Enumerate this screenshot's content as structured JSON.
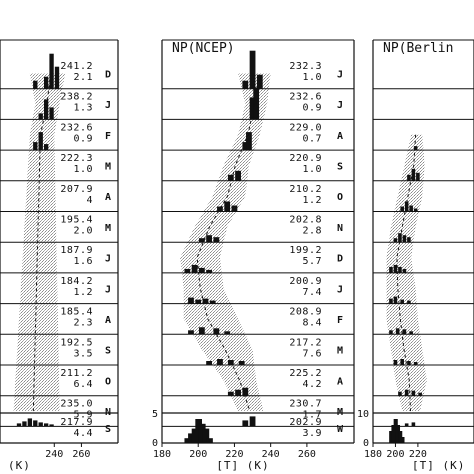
{
  "chart_data": {
    "type": "bar",
    "layout": "three stacked monthly temperature histograms with partial left and right panels",
    "fill_color": "#111111",
    "range_shading": "stippled gray",
    "panels": [
      {
        "title": "",
        "months": [
          {
            "label": "D",
            "mean": "241.2",
            "std": "2.1",
            "bars": [
              [
                226,
                8
              ],
              [
                234,
                12
              ],
              [
                238,
                35
              ],
              [
                242,
                22
              ]
            ]
          },
          {
            "label": "J",
            "mean": "238.2",
            "std": "1.3",
            "bars": [
              [
                230,
                6
              ],
              [
                234,
                20
              ],
              [
                238,
                12
              ]
            ]
          },
          {
            "label": "F",
            "mean": "232.6",
            "std": "0.9",
            "bars": [
              [
                226,
                8
              ],
              [
                230,
                18
              ],
              [
                234,
                6
              ]
            ]
          },
          {
            "label": "M",
            "mean": "222.3",
            "std": "1.0",
            "bars": []
          },
          {
            "label": "A",
            "mean": "207.9",
            "std": "4",
            "bars": []
          },
          {
            "label": "M",
            "mean": "195.4",
            "std": "2.0",
            "bars": []
          },
          {
            "label": "J",
            "mean": "187.9",
            "std": "1.6",
            "bars": []
          },
          {
            "label": "J",
            "mean": "184.2",
            "std": "1.2",
            "bars": []
          },
          {
            "label": "A",
            "mean": "185.4",
            "std": "2.3",
            "bars": []
          },
          {
            "label": "S",
            "mean": "192.5",
            "std": "3.5",
            "bars": []
          },
          {
            "label": "O",
            "mean": "211.2",
            "std": "6.4",
            "bars": []
          },
          {
            "label": "N",
            "mean": "235.0",
            "std": "5.9",
            "bars": [
              [
                214,
                3
              ],
              [
                218,
                5
              ],
              [
                222,
                8
              ],
              [
                226,
                6
              ],
              [
                230,
                4
              ],
              [
                234,
                3
              ],
              [
                238,
                2
              ]
            ]
          }
        ],
        "annual": {
          "label": "S",
          "mean": "217.9",
          "std": "4.4",
          "bars": []
        },
        "x_ticks": [
          "240",
          "260"
        ],
        "x_domain": [
          200,
          270
        ],
        "annual_y_ticks": []
      },
      {
        "title": "NP(NCEP)",
        "months": [
          {
            "label": "J",
            "mean": "232.3",
            "std": "1.0",
            "bars": [
              [
                226,
                8
              ],
              [
                230,
                38
              ],
              [
                234,
                14
              ]
            ]
          },
          {
            "label": "J",
            "mean": "232.6",
            "std": "0.9",
            "bars": [
              [
                230,
                22
              ],
              [
                232,
                32
              ]
            ]
          },
          {
            "label": "A",
            "mean": "229.0",
            "std": "0.7",
            "bars": [
              [
                226,
                8
              ],
              [
                228,
                18
              ]
            ]
          },
          {
            "label": "S",
            "mean": "220.9",
            "std": "1.0",
            "bars": [
              [
                218,
                6
              ],
              [
                222,
                10
              ]
            ]
          },
          {
            "label": "O",
            "mean": "210.2",
            "std": "1.2",
            "bars": [
              [
                212,
                5
              ],
              [
                216,
                10
              ],
              [
                220,
                6
              ]
            ]
          },
          {
            "label": "N",
            "mean": "202.8",
            "std": "2.8",
            "bars": [
              [
                202,
                4
              ],
              [
                206,
                7
              ],
              [
                210,
                5
              ]
            ]
          },
          {
            "label": "D",
            "mean": "199.2",
            "std": "5.7",
            "bars": [
              [
                194,
                4
              ],
              [
                198,
                8
              ],
              [
                202,
                5
              ],
              [
                206,
                3
              ]
            ]
          },
          {
            "label": "J",
            "mean": "200.9",
            "std": "7.4",
            "bars": [
              [
                196,
                6
              ],
              [
                200,
                4
              ],
              [
                204,
                5
              ],
              [
                208,
                3
              ]
            ]
          },
          {
            "label": "F",
            "mean": "208.9",
            "std": "8.4",
            "bars": [
              [
                196,
                4
              ],
              [
                202,
                7
              ],
              [
                210,
                6
              ],
              [
                216,
                3
              ]
            ]
          },
          {
            "label": "M",
            "mean": "217.2",
            "std": "7.6",
            "bars": [
              [
                206,
                4
              ],
              [
                212,
                6
              ],
              [
                218,
                5
              ],
              [
                224,
                4
              ]
            ]
          },
          {
            "label": "A",
            "mean": "225.2",
            "std": "4.2",
            "bars": [
              [
                218,
                4
              ],
              [
                222,
                6
              ],
              [
                226,
                8
              ]
            ]
          },
          {
            "label": "M",
            "mean": "230.7",
            "std": "1.7",
            "bars": [
              [
                226,
                6
              ],
              [
                230,
                10
              ]
            ]
          }
        ],
        "annual": {
          "label": "W",
          "mean": "202.9",
          "std": "3.9",
          "bars": [
            [
              194,
              1
            ],
            [
              196,
              2
            ],
            [
              198,
              3
            ],
            [
              200,
              5
            ],
            [
              202,
              4
            ],
            [
              204,
              3
            ],
            [
              206,
              1
            ]
          ]
        },
        "x_ticks": [
          "180",
          "200",
          "220",
          "240",
          "260"
        ],
        "x_domain": [
          180,
          270
        ],
        "annual_y_ticks": [
          "0",
          "5"
        ]
      },
      {
        "title": "NP(Berlin",
        "months": [
          {
            "label": "",
            "mean": "",
            "std": "",
            "bars": []
          },
          {
            "label": "",
            "mean": "",
            "std": "",
            "bars": []
          },
          {
            "label": "",
            "mean": "",
            "std": "",
            "bars": [
              [
                218,
                4
              ]
            ]
          },
          {
            "label": "",
            "mean": "",
            "std": "",
            "bars": [
              [
                212,
                6
              ],
              [
                216,
                12
              ],
              [
                220,
                8
              ]
            ]
          },
          {
            "label": "",
            "mean": "",
            "std": "",
            "bars": [
              [
                206,
                5
              ],
              [
                210,
                10
              ],
              [
                214,
                6
              ],
              [
                218,
                3
              ]
            ]
          },
          {
            "label": "",
            "mean": "",
            "std": "",
            "bars": [
              [
                200,
                4
              ],
              [
                204,
                9
              ],
              [
                208,
                7
              ],
              [
                212,
                5
              ]
            ]
          },
          {
            "label": "",
            "mean": "",
            "std": "",
            "bars": [
              [
                196,
                6
              ],
              [
                200,
                8
              ],
              [
                204,
                6
              ],
              [
                208,
                4
              ]
            ]
          },
          {
            "label": "",
            "mean": "",
            "std": "",
            "bars": [
              [
                196,
                5
              ],
              [
                200,
                7
              ],
              [
                206,
                4
              ],
              [
                212,
                3
              ]
            ]
          },
          {
            "label": "",
            "mean": "",
            "std": "",
            "bars": [
              [
                196,
                4
              ],
              [
                202,
                6
              ],
              [
                208,
                5
              ],
              [
                214,
                3
              ]
            ]
          },
          {
            "label": "",
            "mean": "",
            "std": "",
            "bars": [
              [
                200,
                5
              ],
              [
                206,
                6
              ],
              [
                212,
                4
              ],
              [
                218,
                3
              ]
            ]
          },
          {
            "label": "",
            "mean": "",
            "std": "",
            "bars": [
              [
                204,
                4
              ],
              [
                210,
                6
              ],
              [
                216,
                5
              ],
              [
                222,
                3
              ]
            ]
          },
          {
            "label": "",
            "mean": "",
            "std": "",
            "bars": [
              [
                210,
                3
              ],
              [
                216,
                4
              ]
            ]
          }
        ],
        "annual": {
          "label": "",
          "mean": "",
          "std": "",
          "bars": [
            [
              196,
              2
            ],
            [
              198,
              3
            ],
            [
              200,
              4
            ],
            [
              202,
              3
            ],
            [
              204,
              2
            ],
            [
              206,
              1
            ]
          ]
        },
        "x_ticks": [
          "180",
          "200",
          "220"
        ],
        "x_domain": [
          180,
          270
        ],
        "annual_y_ticks": [
          "0",
          "10"
        ]
      }
    ],
    "xlabel": "[T]  (K)"
  }
}
